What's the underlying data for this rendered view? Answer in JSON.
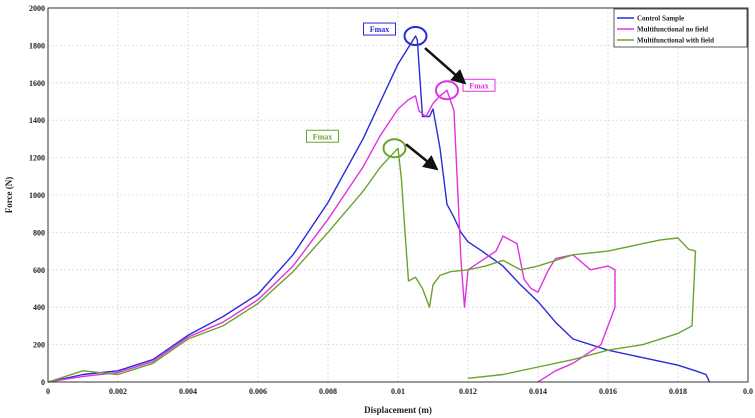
{
  "chart_data": {
    "type": "line",
    "xlabel": "Displacement (m)",
    "ylabel": "Force (N)",
    "xlim": [
      0,
      0.02
    ],
    "ylim": [
      0,
      2000
    ],
    "xticks": [
      "0",
      "0.002",
      "0.004",
      "0.006",
      "0.008",
      "0.01",
      "0.012",
      "0.014",
      "0.016",
      "0.018",
      "0.0"
    ],
    "yticks": [
      "0",
      "200",
      "400",
      "600",
      "800",
      "1000",
      "1200",
      "1400",
      "1600",
      "1800",
      "2000"
    ],
    "grid": true,
    "legend_position": "top-right",
    "series": [
      {
        "name": "Control Sample",
        "color": "#2b2bd6",
        "points": [
          [
            0,
            0
          ],
          [
            0.001,
            40
          ],
          [
            0.002,
            60
          ],
          [
            0.003,
            120
          ],
          [
            0.004,
            250
          ],
          [
            0.005,
            350
          ],
          [
            0.006,
            470
          ],
          [
            0.007,
            680
          ],
          [
            0.008,
            960
          ],
          [
            0.009,
            1300
          ],
          [
            0.0095,
            1500
          ],
          [
            0.01,
            1700
          ],
          [
            0.0105,
            1850
          ],
          [
            0.01055,
            1830
          ],
          [
            0.0107,
            1420
          ],
          [
            0.0109,
            1420
          ],
          [
            0.011,
            1460
          ],
          [
            0.0112,
            1250
          ],
          [
            0.0114,
            950
          ],
          [
            0.0116,
            880
          ],
          [
            0.0118,
            800
          ],
          [
            0.012,
            750
          ],
          [
            0.0124,
            700
          ],
          [
            0.013,
            620
          ],
          [
            0.0135,
            520
          ],
          [
            0.014,
            430
          ],
          [
            0.0145,
            320
          ],
          [
            0.015,
            230
          ],
          [
            0.016,
            170
          ],
          [
            0.017,
            130
          ],
          [
            0.018,
            90
          ],
          [
            0.0185,
            60
          ],
          [
            0.0188,
            40
          ],
          [
            0.0189,
            0
          ]
        ]
      },
      {
        "name": "Multifunctional no field",
        "color": "#e033e0",
        "points": [
          [
            0,
            0
          ],
          [
            0.001,
            30
          ],
          [
            0.002,
            50
          ],
          [
            0.003,
            110
          ],
          [
            0.004,
            240
          ],
          [
            0.005,
            320
          ],
          [
            0.006,
            440
          ],
          [
            0.007,
            620
          ],
          [
            0.008,
            870
          ],
          [
            0.009,
            1150
          ],
          [
            0.0095,
            1320
          ],
          [
            0.01,
            1460
          ],
          [
            0.0103,
            1510
          ],
          [
            0.0105,
            1530
          ],
          [
            0.0106,
            1450
          ],
          [
            0.0108,
            1420
          ],
          [
            0.011,
            1490
          ],
          [
            0.0112,
            1530
          ],
          [
            0.0114,
            1560
          ],
          [
            0.0116,
            1450
          ],
          [
            0.0118,
            650
          ],
          [
            0.0119,
            400
          ],
          [
            0.012,
            600
          ],
          [
            0.0124,
            650
          ],
          [
            0.0128,
            700
          ],
          [
            0.013,
            780
          ],
          [
            0.0134,
            740
          ],
          [
            0.0136,
            550
          ],
          [
            0.0138,
            500
          ],
          [
            0.014,
            480
          ],
          [
            0.0143,
            600
          ],
          [
            0.0145,
            660
          ],
          [
            0.015,
            680
          ],
          [
            0.0155,
            600
          ],
          [
            0.016,
            620
          ],
          [
            0.0162,
            600
          ],
          [
            0.0162,
            400
          ],
          [
            0.0158,
            200
          ],
          [
            0.015,
            100
          ],
          [
            0.0145,
            60
          ],
          [
            0.014,
            0
          ]
        ]
      },
      {
        "name": "Multifunctional with field",
        "color": "#6aa42e",
        "points": [
          [
            0,
            0
          ],
          [
            0.001,
            60
          ],
          [
            0.002,
            40
          ],
          [
            0.003,
            100
          ],
          [
            0.004,
            230
          ],
          [
            0.005,
            300
          ],
          [
            0.006,
            420
          ],
          [
            0.007,
            590
          ],
          [
            0.008,
            800
          ],
          [
            0.009,
            1020
          ],
          [
            0.0095,
            1150
          ],
          [
            0.0098,
            1210
          ],
          [
            0.01,
            1250
          ],
          [
            0.0101,
            1080
          ],
          [
            0.0102,
            800
          ],
          [
            0.0103,
            540
          ],
          [
            0.0105,
            560
          ],
          [
            0.0107,
            500
          ],
          [
            0.0109,
            400
          ],
          [
            0.011,
            520
          ],
          [
            0.0112,
            570
          ],
          [
            0.0115,
            590
          ],
          [
            0.012,
            600
          ],
          [
            0.0125,
            620
          ],
          [
            0.013,
            650
          ],
          [
            0.0135,
            600
          ],
          [
            0.014,
            620
          ],
          [
            0.015,
            680
          ],
          [
            0.016,
            700
          ],
          [
            0.017,
            740
          ],
          [
            0.0175,
            760
          ],
          [
            0.018,
            770
          ],
          [
            0.0183,
            710
          ],
          [
            0.0185,
            700
          ],
          [
            0.0184,
            300
          ],
          [
            0.018,
            260
          ],
          [
            0.017,
            200
          ],
          [
            0.016,
            170
          ],
          [
            0.015,
            120
          ],
          [
            0.014,
            80
          ],
          [
            0.013,
            40
          ],
          [
            0.012,
            20
          ]
        ]
      }
    ],
    "annotations": [
      {
        "label": "Fmax",
        "color": "#2b2bd6",
        "x": 0.0105,
        "y": 1850
      },
      {
        "label": "Fmax",
        "color": "#e033e0",
        "x": 0.0114,
        "y": 1560
      },
      {
        "label": "Fmax",
        "color": "#6aa42e",
        "x": 0.0099,
        "y": 1250
      }
    ]
  }
}
